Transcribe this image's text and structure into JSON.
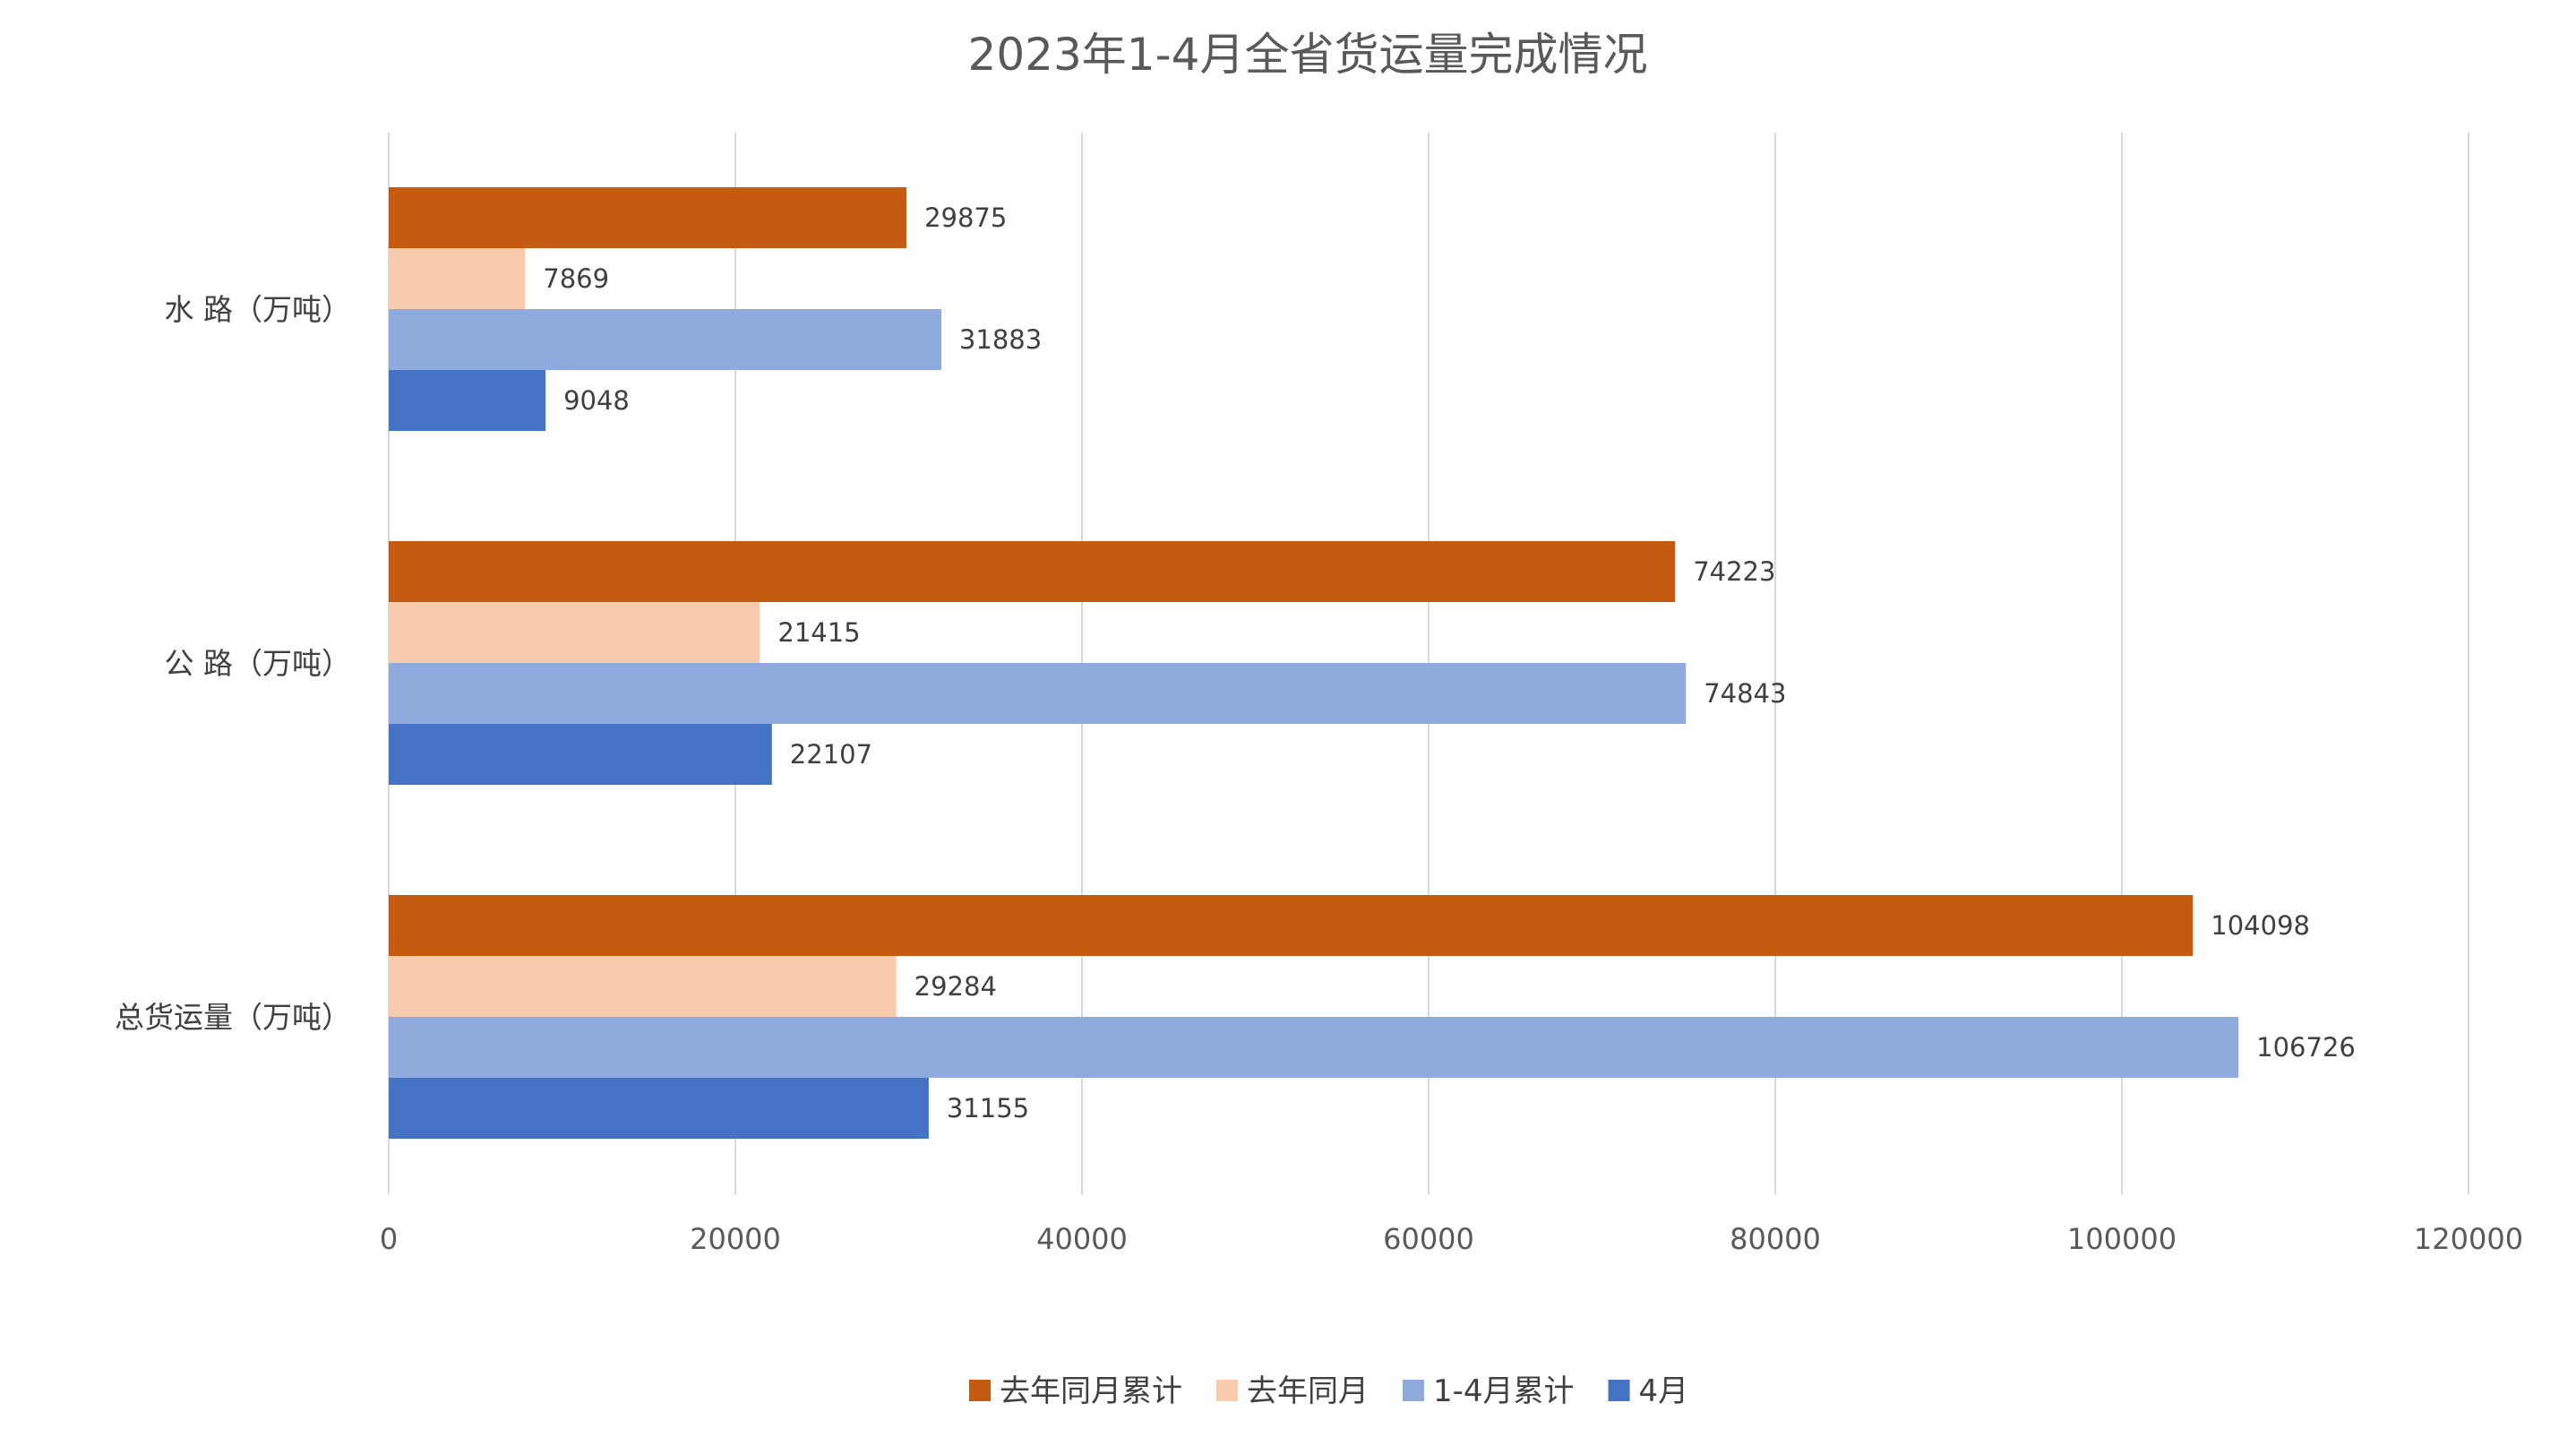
{
  "chart_data": {
    "type": "bar",
    "orientation": "horizontal",
    "title": "2023年1-4月全省货运量完成情况",
    "categories": [
      "水 路（万吨）",
      "公 路（万吨）",
      "总货运量（万吨）"
    ],
    "series": [
      {
        "name": "去年同月累计",
        "color": "#C55A11",
        "values": [
          29875,
          74223,
          104098
        ]
      },
      {
        "name": "去年同月",
        "color": "#F8CBAD",
        "values": [
          7869,
          21415,
          29284
        ]
      },
      {
        "name": "1-4月累计",
        "color": "#8FAADC",
        "values": [
          31883,
          74843,
          106726
        ]
      },
      {
        "name": "4月",
        "color": "#4472C4",
        "values": [
          9048,
          22107,
          31155
        ]
      }
    ],
    "xlim": [
      0,
      120000
    ],
    "xticks": [
      "0",
      "20000",
      "40000",
      "60000",
      "80000",
      "100000",
      "120000"
    ],
    "grid": true,
    "legend_position": "bottom"
  }
}
